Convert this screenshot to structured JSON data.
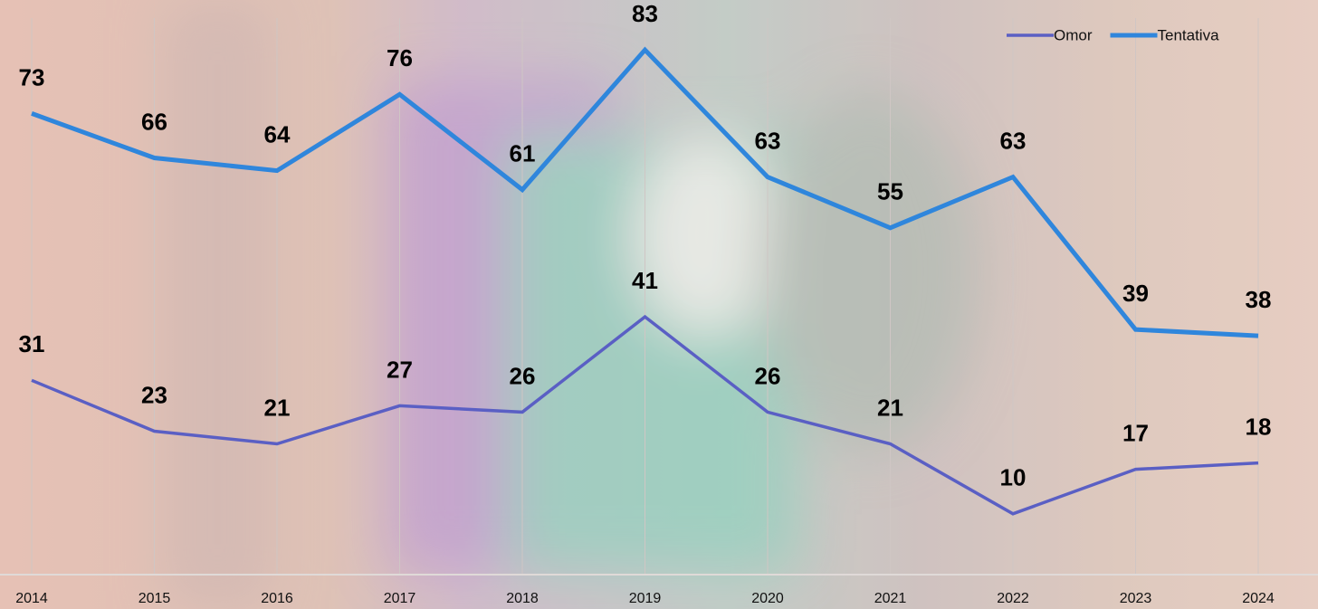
{
  "chart_data": {
    "type": "line",
    "categories": [
      "2014",
      "2015",
      "2016",
      "2017",
      "2018",
      "2019",
      "2020",
      "2021",
      "2022",
      "2023",
      "2024"
    ],
    "series": [
      {
        "name": "Omor",
        "color": "#5a5fc4",
        "values": [
          31,
          23,
          21,
          27,
          26,
          41,
          26,
          21,
          10,
          17,
          18
        ]
      },
      {
        "name": "Tentativa",
        "color": "#2f86dc",
        "values": [
          73,
          66,
          64,
          76,
          61,
          83,
          63,
          55,
          63,
          39,
          38
        ]
      }
    ],
    "ylim": [
      0,
      90
    ],
    "grid": true,
    "legend": "top-right"
  }
}
